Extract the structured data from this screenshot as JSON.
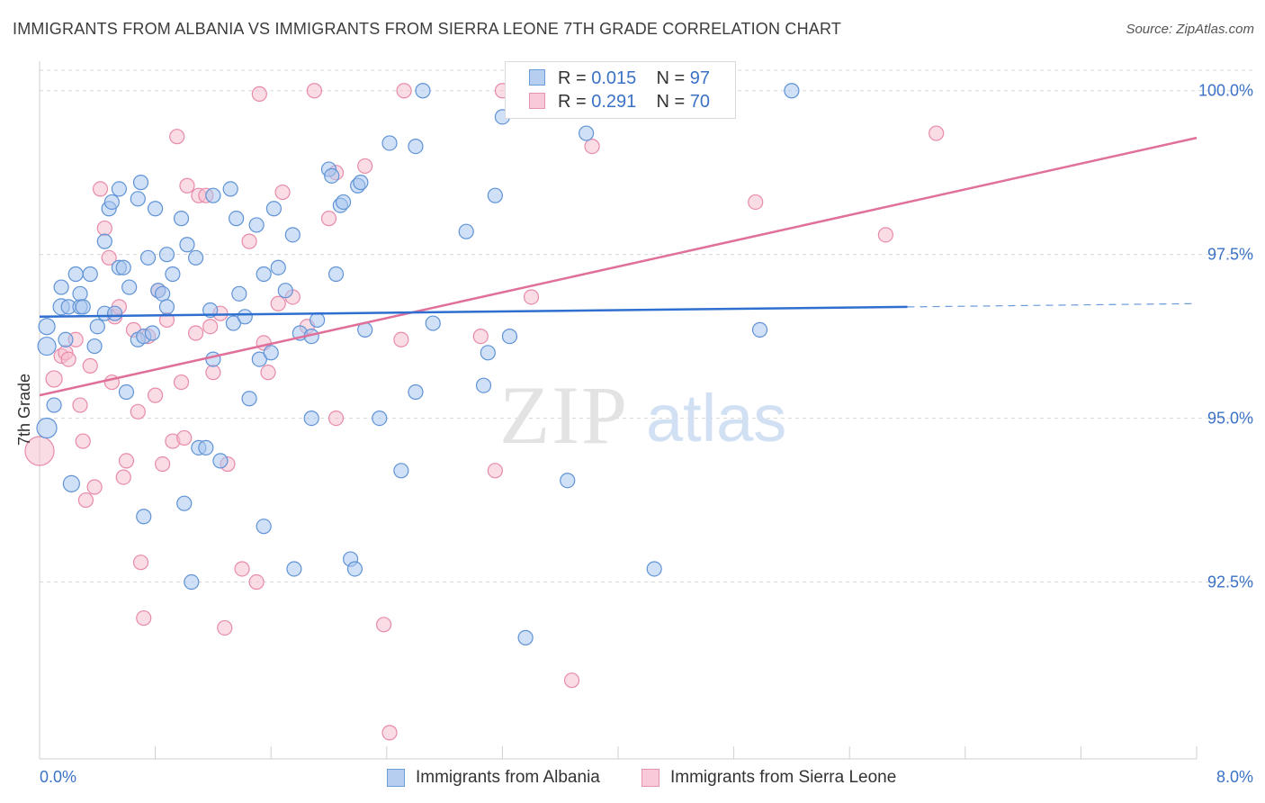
{
  "title": "IMMIGRANTS FROM ALBANIA VS IMMIGRANTS FROM SIERRA LEONE 7TH GRADE CORRELATION CHART",
  "source": "Source: ZipAtlas.com",
  "watermark": {
    "zip": "ZIP",
    "atlas": "atlas"
  },
  "legend": {
    "r_label": "R =",
    "n_label": "N =",
    "albania": {
      "r": "0.015",
      "n": "97"
    },
    "sierra_leone": {
      "r": "0.291",
      "n": "70"
    }
  },
  "colors": {
    "albania_fill": "#a9c7ee",
    "albania_stroke": "#5f93d6",
    "albania_line": "#2f6fcf",
    "sierra_fill": "#f6bfd0",
    "sierra_stroke": "#e88aaa",
    "sierra_line": "#e0709a",
    "tick_label": "#3b72c6",
    "grid": "#d8d8d8"
  },
  "chart_data": {
    "type": "scatter",
    "title": "IMMIGRANTS FROM ALBANIA VS IMMIGRANTS FROM SIERRA LEONE 7TH GRADE CORRELATION CHART",
    "xlabel": "",
    "ylabel": "7th Grade",
    "xlim": [
      0.0,
      8.0
    ],
    "ylim": [
      89.8,
      100.45
    ],
    "x_tick_labels": [
      "0.0%",
      "8.0%"
    ],
    "y_ticks": [
      92.5,
      95.0,
      97.5,
      100.0
    ],
    "y_tick_labels": [
      "92.5%",
      "95.0%",
      "97.5%",
      "100.0%"
    ],
    "grid": true,
    "legend_position": "top-center",
    "series": [
      {
        "name": "Immigrants from Albania",
        "trend": {
          "x": [
            0.0,
            6.0
          ],
          "y": [
            96.55,
            96.7
          ],
          "dashed_to": [
            8.0,
            96.75
          ]
        },
        "points": [
          [
            0.05,
            96.4,
            9
          ],
          [
            0.05,
            96.1,
            10
          ],
          [
            0.05,
            94.85,
            11
          ],
          [
            0.1,
            95.2,
            8
          ],
          [
            0.15,
            96.7,
            9
          ],
          [
            0.15,
            97.0,
            8
          ],
          [
            0.18,
            96.2,
            8
          ],
          [
            0.2,
            96.7,
            8
          ],
          [
            0.22,
            94.0,
            9
          ],
          [
            0.25,
            97.2,
            8
          ],
          [
            0.28,
            96.7,
            8
          ],
          [
            0.28,
            96.9,
            8
          ],
          [
            0.3,
            96.7,
            8
          ],
          [
            0.35,
            97.2,
            8
          ],
          [
            0.38,
            96.1,
            8
          ],
          [
            0.4,
            96.4,
            8
          ],
          [
            0.45,
            96.6,
            8
          ],
          [
            0.45,
            97.7,
            8
          ],
          [
            0.48,
            98.2,
            8
          ],
          [
            0.5,
            98.3,
            8
          ],
          [
            0.52,
            96.6,
            8
          ],
          [
            0.55,
            98.5,
            8
          ],
          [
            0.55,
            97.3,
            8
          ],
          [
            0.58,
            97.3,
            8
          ],
          [
            0.6,
            95.4,
            8
          ],
          [
            0.62,
            97.0,
            8
          ],
          [
            0.68,
            98.35,
            8
          ],
          [
            0.68,
            96.2,
            8
          ],
          [
            0.7,
            98.6,
            8
          ],
          [
            0.72,
            96.25,
            8
          ],
          [
            0.72,
            93.5,
            8
          ],
          [
            0.75,
            97.45,
            8
          ],
          [
            0.78,
            96.3,
            8
          ],
          [
            0.8,
            98.2,
            8
          ],
          [
            0.82,
            96.95,
            8
          ],
          [
            0.85,
            96.9,
            8
          ],
          [
            0.88,
            96.7,
            8
          ],
          [
            0.88,
            97.5,
            8
          ],
          [
            0.92,
            97.2,
            8
          ],
          [
            0.98,
            98.05,
            8
          ],
          [
            1.0,
            93.7,
            8
          ],
          [
            1.02,
            97.65,
            8
          ],
          [
            1.05,
            92.5,
            8
          ],
          [
            1.08,
            97.45,
            8
          ],
          [
            1.1,
            94.55,
            8
          ],
          [
            1.15,
            94.55,
            8
          ],
          [
            1.18,
            96.65,
            8
          ],
          [
            1.2,
            95.9,
            8
          ],
          [
            1.2,
            98.4,
            8
          ],
          [
            1.25,
            94.35,
            8
          ],
          [
            1.32,
            98.5,
            8
          ],
          [
            1.34,
            96.45,
            8
          ],
          [
            1.36,
            98.05,
            8
          ],
          [
            1.38,
            96.9,
            8
          ],
          [
            1.42,
            96.55,
            8
          ],
          [
            1.45,
            95.3,
            8
          ],
          [
            1.5,
            97.95,
            8
          ],
          [
            1.52,
            95.9,
            8
          ],
          [
            1.55,
            93.35,
            8
          ],
          [
            1.55,
            97.2,
            8
          ],
          [
            1.6,
            96.0,
            8
          ],
          [
            1.62,
            98.2,
            8
          ],
          [
            1.65,
            97.3,
            8
          ],
          [
            1.7,
            96.95,
            8
          ],
          [
            1.75,
            97.8,
            8
          ],
          [
            1.76,
            92.7,
            8
          ],
          [
            1.8,
            96.3,
            8
          ],
          [
            1.88,
            96.25,
            8
          ],
          [
            1.88,
            95.0,
            8
          ],
          [
            1.92,
            96.5,
            8
          ],
          [
            2.0,
            98.8,
            8
          ],
          [
            2.02,
            98.7,
            8
          ],
          [
            2.05,
            97.2,
            8
          ],
          [
            2.08,
            98.25,
            8
          ],
          [
            2.1,
            98.3,
            8
          ],
          [
            2.15,
            92.85,
            8
          ],
          [
            2.18,
            92.7,
            8
          ],
          [
            2.2,
            98.55,
            8
          ],
          [
            2.22,
            98.6,
            8
          ],
          [
            2.25,
            96.35,
            8
          ],
          [
            2.35,
            95.0,
            8
          ],
          [
            2.42,
            99.2,
            8
          ],
          [
            2.5,
            94.2,
            8
          ],
          [
            2.6,
            99.15,
            8
          ],
          [
            2.6,
            95.4,
            8
          ],
          [
            2.65,
            100.0,
            8
          ],
          [
            2.72,
            96.45,
            8
          ],
          [
            2.95,
            97.85,
            8
          ],
          [
            3.07,
            95.5,
            8
          ],
          [
            3.1,
            96.0,
            8
          ],
          [
            3.15,
            98.4,
            8
          ],
          [
            3.2,
            99.6,
            8
          ],
          [
            3.25,
            96.25,
            8
          ],
          [
            3.36,
            91.65,
            8
          ],
          [
            3.65,
            94.05,
            8
          ],
          [
            3.78,
            99.35,
            8
          ],
          [
            4.25,
            92.7,
            8
          ],
          [
            4.98,
            96.35,
            8
          ],
          [
            5.2,
            100.0,
            8
          ]
        ]
      },
      {
        "name": "Immigrants from Sierra Leone",
        "trend": {
          "x": [
            0.0,
            8.0
          ],
          "y": [
            95.35,
            99.28
          ]
        },
        "points": [
          [
            0.0,
            94.5,
            16
          ],
          [
            0.1,
            95.6,
            9
          ],
          [
            0.15,
            95.95,
            8
          ],
          [
            0.18,
            96.0,
            8
          ],
          [
            0.2,
            95.9,
            8
          ],
          [
            0.25,
            96.2,
            8
          ],
          [
            0.28,
            95.2,
            8
          ],
          [
            0.3,
            94.65,
            8
          ],
          [
            0.32,
            93.75,
            8
          ],
          [
            0.35,
            95.8,
            8
          ],
          [
            0.38,
            93.95,
            8
          ],
          [
            0.42,
            98.5,
            8
          ],
          [
            0.45,
            97.9,
            8
          ],
          [
            0.48,
            97.45,
            8
          ],
          [
            0.5,
            95.55,
            8
          ],
          [
            0.52,
            96.55,
            8
          ],
          [
            0.55,
            96.7,
            8
          ],
          [
            0.58,
            94.1,
            8
          ],
          [
            0.6,
            94.35,
            8
          ],
          [
            0.65,
            96.35,
            8
          ],
          [
            0.68,
            95.1,
            8
          ],
          [
            0.7,
            92.8,
            8
          ],
          [
            0.72,
            91.95,
            8
          ],
          [
            0.75,
            96.25,
            8
          ],
          [
            0.8,
            95.35,
            8
          ],
          [
            0.82,
            96.95,
            8
          ],
          [
            0.85,
            94.3,
            8
          ],
          [
            0.88,
            96.5,
            8
          ],
          [
            0.92,
            94.65,
            8
          ],
          [
            0.95,
            99.3,
            8
          ],
          [
            0.98,
            95.55,
            8
          ],
          [
            1.0,
            94.7,
            8
          ],
          [
            1.02,
            98.55,
            8
          ],
          [
            1.08,
            96.3,
            8
          ],
          [
            1.1,
            98.4,
            8
          ],
          [
            1.15,
            98.4,
            8
          ],
          [
            1.18,
            96.4,
            8
          ],
          [
            1.2,
            95.7,
            8
          ],
          [
            1.25,
            96.6,
            8
          ],
          [
            1.28,
            91.8,
            8
          ],
          [
            1.3,
            94.3,
            8
          ],
          [
            1.4,
            92.7,
            8
          ],
          [
            1.45,
            97.7,
            8
          ],
          [
            1.5,
            92.5,
            8
          ],
          [
            1.52,
            99.95,
            8
          ],
          [
            1.55,
            96.15,
            8
          ],
          [
            1.58,
            95.7,
            8
          ],
          [
            1.65,
            96.75,
            8
          ],
          [
            1.68,
            98.45,
            8
          ],
          [
            1.75,
            96.85,
            8
          ],
          [
            1.85,
            96.4,
            8
          ],
          [
            1.9,
            100.0,
            8
          ],
          [
            2.0,
            98.05,
            8
          ],
          [
            2.05,
            98.75,
            8
          ],
          [
            2.05,
            95.0,
            8
          ],
          [
            2.25,
            98.85,
            8
          ],
          [
            2.38,
            91.85,
            8
          ],
          [
            2.42,
            90.2,
            8
          ],
          [
            2.5,
            96.2,
            8
          ],
          [
            2.52,
            100.0,
            8
          ],
          [
            3.05,
            96.25,
            8
          ],
          [
            3.15,
            94.2,
            8
          ],
          [
            3.2,
            100.0,
            8
          ],
          [
            3.4,
            96.85,
            8
          ],
          [
            3.68,
            91.0,
            8
          ],
          [
            3.82,
            99.15,
            8
          ],
          [
            4.95,
            98.3,
            8
          ],
          [
            5.85,
            97.8,
            8
          ],
          [
            6.2,
            99.35,
            8
          ],
          [
            3.8,
            99.75,
            8
          ]
        ]
      }
    ]
  }
}
